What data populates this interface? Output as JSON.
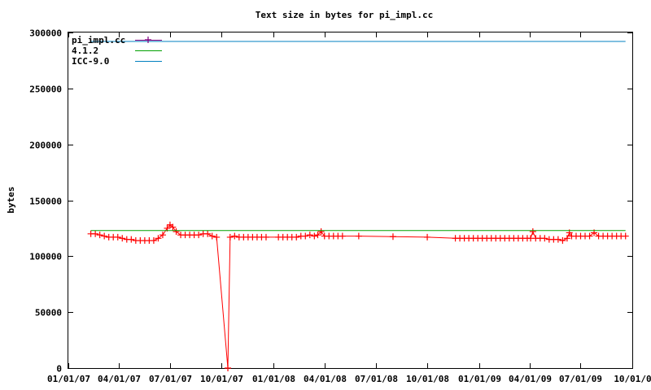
{
  "chart_data": {
    "type": "line",
    "title": "Text size in bytes for pi_impl.cc",
    "xlabel": "",
    "ylabel": "bytes",
    "x_tick_labels": [
      "01/01/07",
      "04/01/07",
      "07/01/07",
      "10/01/07",
      "01/01/08",
      "04/01/08",
      "07/01/08",
      "10/01/08",
      "01/01/09",
      "04/01/09",
      "07/01/09",
      "10/01/0"
    ],
    "y_ticks": [
      0,
      50000,
      100000,
      150000,
      200000,
      250000,
      300000
    ],
    "y_tick_labels": [
      "0",
      "50000",
      "100000",
      "150000",
      "200000",
      "250000",
      "300000"
    ],
    "ylim": [
      0,
      300000
    ],
    "grid": false,
    "legend_position": "top-left",
    "legend": [
      "pi_impl.cc",
      "4.1.2",
      "ICC-9.0"
    ],
    "series": [
      {
        "name": "pi_impl.cc",
        "color": "#ff0000",
        "marker": "plus",
        "points": [
          [
            "2007-02-10",
            120000
          ],
          [
            "2007-02-18",
            120000
          ],
          [
            "2007-02-26",
            119000
          ],
          [
            "2007-03-06",
            118000
          ],
          [
            "2007-03-14",
            117000
          ],
          [
            "2007-03-22",
            117000
          ],
          [
            "2007-03-30",
            117000
          ],
          [
            "2007-04-07",
            116000
          ],
          [
            "2007-04-15",
            115000
          ],
          [
            "2007-04-23",
            115000
          ],
          [
            "2007-05-01",
            114000
          ],
          [
            "2007-05-09",
            114000
          ],
          [
            "2007-05-17",
            114000
          ],
          [
            "2007-05-25",
            114000
          ],
          [
            "2007-06-02",
            114000
          ],
          [
            "2007-06-10",
            116000
          ],
          [
            "2007-06-18",
            119000
          ],
          [
            "2007-06-26",
            125000
          ],
          [
            "2007-07-01",
            128000
          ],
          [
            "2007-07-06",
            126000
          ],
          [
            "2007-07-12",
            122000
          ],
          [
            "2007-07-20",
            119000
          ],
          [
            "2007-07-28",
            119000
          ],
          [
            "2007-08-05",
            119000
          ],
          [
            "2007-08-13",
            119000
          ],
          [
            "2007-08-21",
            119000
          ],
          [
            "2007-08-29",
            120000
          ],
          [
            "2007-09-06",
            120000
          ],
          [
            "2007-09-14",
            118000
          ],
          [
            "2007-09-22",
            117000
          ],
          [
            "2007-10-12",
            0
          ],
          [
            "2007-10-16",
            117000
          ],
          [
            "2007-10-24",
            118000
          ],
          [
            "2007-11-01",
            117000
          ],
          [
            "2007-11-09",
            117000
          ],
          [
            "2007-11-17",
            117000
          ],
          [
            "2007-11-25",
            117000
          ],
          [
            "2007-12-03",
            117000
          ],
          [
            "2007-12-11",
            117000
          ],
          [
            "2007-12-19",
            117000
          ],
          [
            "2008-01-10",
            117000
          ],
          [
            "2008-01-18",
            117000
          ],
          [
            "2008-01-26",
            117000
          ],
          [
            "2008-02-03",
            117000
          ],
          [
            "2008-02-11",
            117000
          ],
          [
            "2008-02-19",
            118000
          ],
          [
            "2008-02-27",
            118000
          ],
          [
            "2008-03-06",
            119000
          ],
          [
            "2008-03-14",
            118000
          ],
          [
            "2008-03-20",
            119000
          ],
          [
            "2008-03-26",
            122000
          ],
          [
            "2008-04-01",
            118000
          ],
          [
            "2008-04-09",
            118000
          ],
          [
            "2008-04-17",
            118000
          ],
          [
            "2008-04-25",
            118000
          ],
          [
            "2008-05-03",
            118000
          ],
          [
            "2008-06-01",
            118000
          ],
          [
            "2008-08-01",
            117500
          ],
          [
            "2008-10-01",
            117000
          ],
          [
            "2008-11-20",
            116000
          ],
          [
            "2008-11-28",
            116000
          ],
          [
            "2008-12-06",
            116000
          ],
          [
            "2008-12-14",
            116000
          ],
          [
            "2008-12-22",
            116000
          ],
          [
            "2008-12-30",
            116000
          ],
          [
            "2009-01-07",
            116000
          ],
          [
            "2009-01-15",
            116000
          ],
          [
            "2009-01-23",
            116000
          ],
          [
            "2009-01-31",
            116000
          ],
          [
            "2009-02-08",
            116000
          ],
          [
            "2009-02-16",
            116000
          ],
          [
            "2009-02-24",
            116000
          ],
          [
            "2009-03-04",
            116000
          ],
          [
            "2009-03-12",
            116000
          ],
          [
            "2009-03-20",
            116000
          ],
          [
            "2009-03-28",
            116000
          ],
          [
            "2009-04-03",
            116000
          ],
          [
            "2009-04-07",
            122000
          ],
          [
            "2009-04-12",
            116000
          ],
          [
            "2009-04-20",
            116000
          ],
          [
            "2009-04-28",
            116000
          ],
          [
            "2009-05-06",
            115000
          ],
          [
            "2009-05-14",
            115000
          ],
          [
            "2009-05-22",
            115000
          ],
          [
            "2009-05-30",
            114000
          ],
          [
            "2009-06-07",
            116000
          ],
          [
            "2009-06-11",
            121000
          ],
          [
            "2009-06-15",
            118000
          ],
          [
            "2009-06-23",
            118000
          ],
          [
            "2009-07-01",
            118000
          ],
          [
            "2009-07-09",
            118000
          ],
          [
            "2009-07-17",
            118000
          ],
          [
            "2009-07-25",
            121000
          ],
          [
            "2009-08-02",
            118000
          ],
          [
            "2009-08-10",
            118000
          ],
          [
            "2009-08-18",
            118000
          ],
          [
            "2009-08-26",
            118000
          ],
          [
            "2009-09-03",
            118000
          ],
          [
            "2009-09-11",
            118000
          ],
          [
            "2009-09-19",
            118000
          ]
        ]
      },
      {
        "name": "4.1.2",
        "color": "#00a000",
        "marker": "none",
        "points": [
          [
            "2007-02-10",
            123000
          ],
          [
            "2009-09-19",
            123000
          ]
        ]
      },
      {
        "name": "ICC-9.0",
        "color": "#0080c0",
        "marker": "none",
        "points": [
          [
            "2007-02-10",
            292000
          ],
          [
            "2009-09-19",
            292000
          ]
        ]
      }
    ]
  }
}
